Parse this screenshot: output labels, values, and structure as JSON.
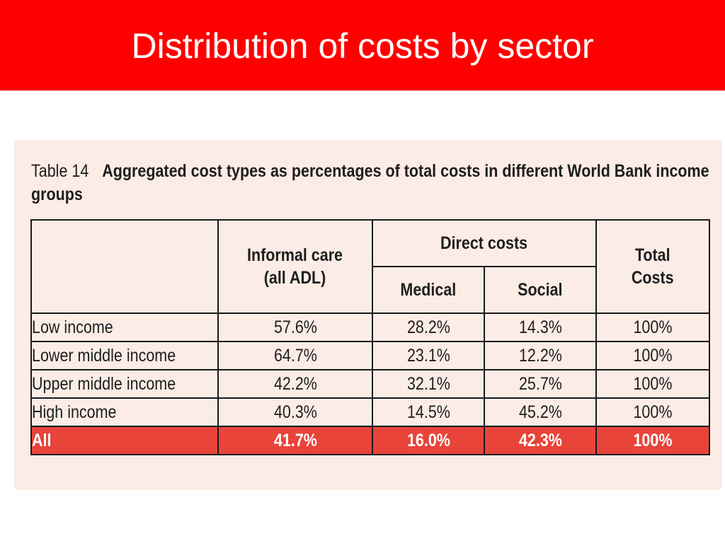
{
  "slide": {
    "title": "Distribution of costs by sector"
  },
  "table": {
    "number": "Table 14",
    "caption": "Aggregated cost types as percentages of total costs in different World Bank income groups",
    "headers": {
      "informal_care": "Informal care (all ADL)",
      "informal_care_line1": "Informal care",
      "informal_care_line2": "(all ADL)",
      "direct_costs": "Direct costs",
      "medical": "Medical",
      "social": "Social",
      "total_line1": "Total",
      "total_line2": "Costs"
    },
    "rows": [
      {
        "label": "Low income",
        "informal": "57.6%",
        "medical": "28.2%",
        "social": "14.3%",
        "total": "100%"
      },
      {
        "label": "Lower middle income",
        "informal": "64.7%",
        "medical": "23.1%",
        "social": "12.2%",
        "total": "100%"
      },
      {
        "label": "Upper middle income",
        "informal": "42.2%",
        "medical": "32.1%",
        "social": "25.7%",
        "total": "100%"
      },
      {
        "label": "High income",
        "informal": "40.3%",
        "medical": "14.5%",
        "social": "45.2%",
        "total": "100%"
      }
    ],
    "total_row": {
      "label": "All",
      "informal": "41.7%",
      "medical": "16.0%",
      "social": "42.3%",
      "total": "100%"
    }
  },
  "colors": {
    "title_bar": "#ff0000",
    "panel": "#fcece6",
    "total_row": "#e8443a"
  }
}
